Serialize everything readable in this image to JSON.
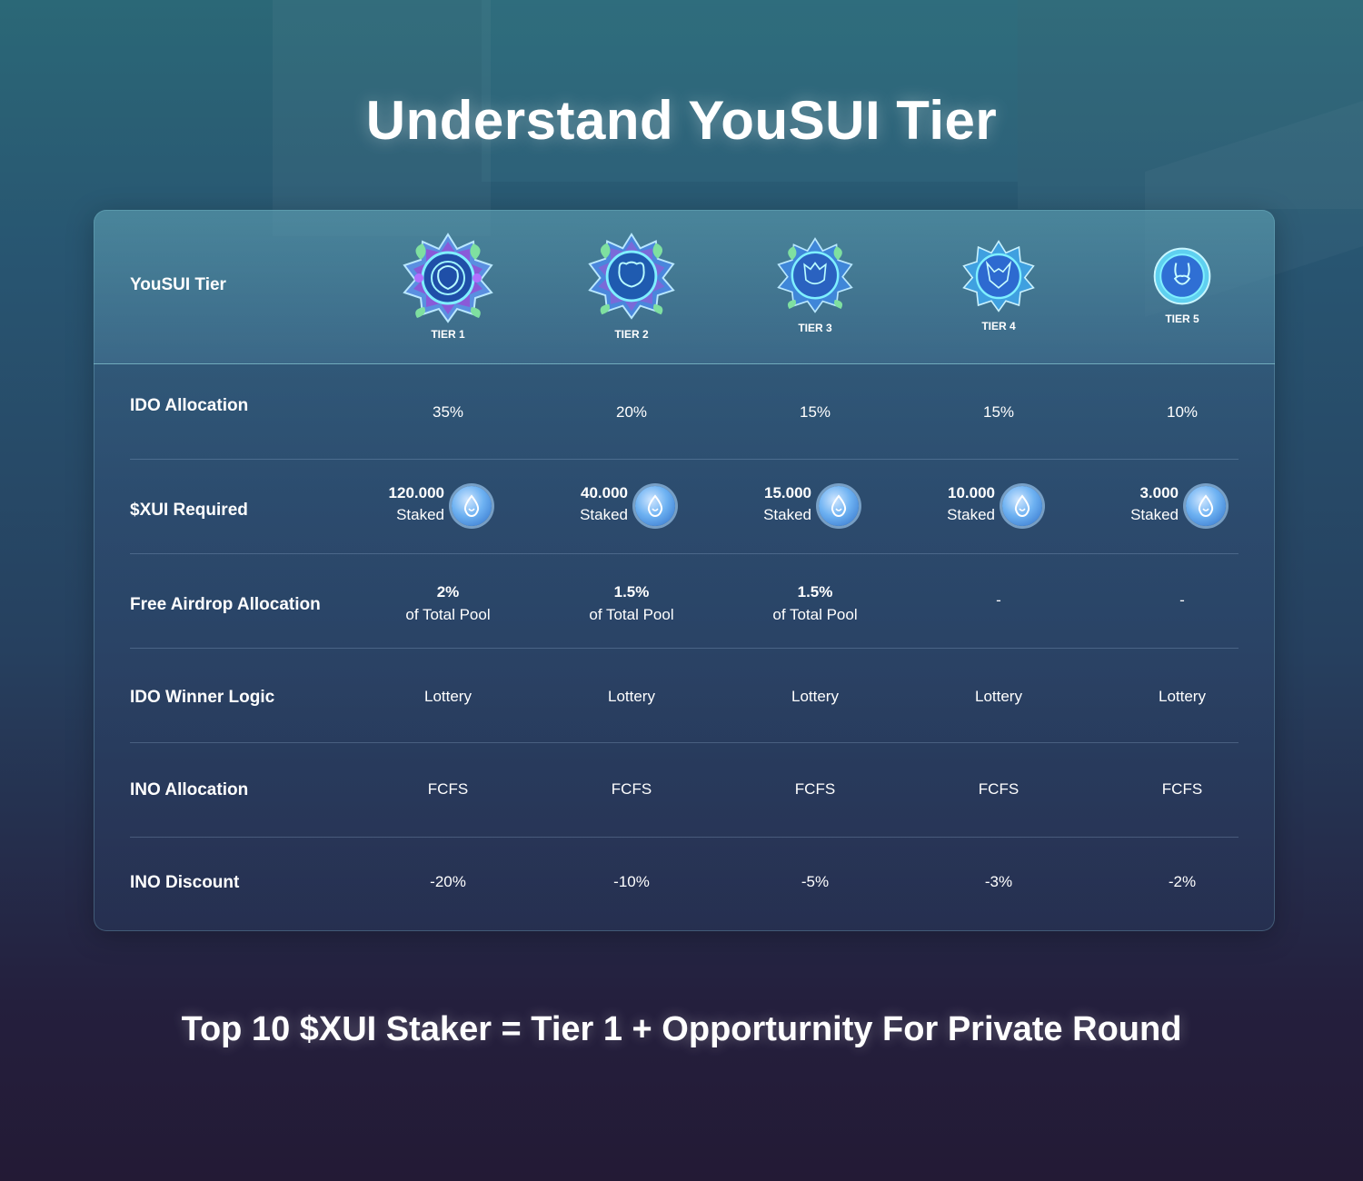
{
  "title": "Understand YouSUI Tier",
  "header_label": "YouSUI Tier",
  "tiers": [
    {
      "caption": "TIER 1",
      "icon": "bear-emblem-icon"
    },
    {
      "caption": "TIER 2",
      "icon": "bear-emblem-icon"
    },
    {
      "caption": "TIER 3",
      "icon": "lion-emblem-icon"
    },
    {
      "caption": "TIER 4",
      "icon": "fox-emblem-icon"
    },
    {
      "caption": "TIER 5",
      "icon": "rabbit-emblem-icon"
    }
  ],
  "rows": {
    "ido_allocation": {
      "label": "IDO Allocation",
      "values": [
        "35%",
        "20%",
        "15%",
        "15%",
        "10%"
      ]
    },
    "xui_required": {
      "label": "$XUI Required",
      "amounts": [
        "120.000",
        "40.000",
        "15.000",
        "10.000",
        "3.000"
      ],
      "unit": "Staked",
      "icon": "sui-drop-coin-icon"
    },
    "free_airdrop": {
      "label": "Free Airdrop Allocation",
      "values": [
        {
          "pct": "2%",
          "note": "of Total Pool"
        },
        {
          "pct": "1.5%",
          "note": "of Total Pool"
        },
        {
          "pct": "1.5%",
          "note": "of Total Pool"
        },
        {
          "pct": "-",
          "note": ""
        },
        {
          "pct": "-",
          "note": ""
        }
      ]
    },
    "ido_winner_logic": {
      "label": "IDO Winner Logic",
      "values": [
        "Lottery",
        "Lottery",
        "Lottery",
        "Lottery",
        "Lottery"
      ]
    },
    "ino_allocation": {
      "label": "INO Allocation",
      "values": [
        "FCFS",
        "FCFS",
        "FCFS",
        "FCFS",
        "FCFS"
      ]
    },
    "ino_discount": {
      "label": "INO Discount",
      "values": [
        "-20%",
        "-10%",
        "-5%",
        "-3%",
        "-2%"
      ]
    }
  },
  "footer": "Top 10 $XUI Staker = Tier 1 + Opporturnity For Private Round",
  "colors": {
    "accent": "#6eb2f2",
    "bg_top": "#2b6877",
    "bg_bottom": "#231a35"
  }
}
